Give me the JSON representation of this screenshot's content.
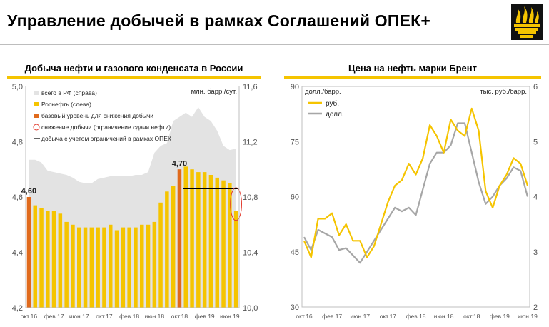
{
  "page": {
    "title": "Управление добычей в рамках Соглашений ОПЕК+"
  },
  "colors": {
    "yellow": "#f5c400",
    "orange": "#e06a1c",
    "gray_area": "#e3e3e3",
    "gray_line": "#a6a6a6",
    "black": "#000000"
  },
  "chart_data": [
    {
      "type": "bar",
      "title": "Добыча нефти и газового конденсата в России",
      "ylabel_right_unit": "млн. барр./сут.",
      "left_axis": {
        "ylim": [
          4.2,
          5.0
        ],
        "ticks": [
          "4,2",
          "4,4",
          "4,6",
          "4,8",
          "5,0"
        ],
        "tick_values": [
          4.2,
          4.4,
          4.6,
          4.8,
          5.0
        ]
      },
      "right_axis": {
        "ylim": [
          10.0,
          11.6
        ],
        "ticks": [
          "10,0",
          "10,4",
          "10,8",
          "11,2",
          "11,6"
        ],
        "tick_values": [
          10.0,
          10.4,
          10.8,
          11.2,
          11.6
        ]
      },
      "x_tick_labels": [
        "окт.16",
        "фев.17",
        "июн.17",
        "окт.17",
        "фев.18",
        "июн.18",
        "окт.18",
        "фев.19",
        "июн.19"
      ],
      "x_tick_indices": [
        0,
        4,
        8,
        12,
        16,
        20,
        24,
        28,
        32
      ],
      "legend": [
        "всего в РФ (справа)",
        "Роснефть (слева)",
        "базовый уровень для снижения добычи",
        "снижение добычи (ограничение сдачи нефти)",
        "добыча с учетом ограничений в рамках ОПЕК+"
      ],
      "rosneft_series": {
        "name": "Роснефть (слева)",
        "values": [
          4.6,
          4.57,
          4.56,
          4.55,
          4.55,
          4.54,
          4.51,
          4.5,
          4.49,
          4.49,
          4.49,
          4.49,
          4.49,
          4.5,
          4.48,
          4.49,
          4.49,
          4.49,
          4.5,
          4.5,
          4.51,
          4.58,
          4.62,
          4.64,
          4.7,
          4.71,
          4.7,
          4.69,
          4.69,
          4.68,
          4.67,
          4.66,
          4.65,
          4.55
        ],
        "baseline_indices": [
          0,
          24
        ],
        "cut_index": 33
      },
      "russia_total_series": {
        "name": "всего в РФ (справа)",
        "values": [
          11.07,
          11.07,
          11.05,
          10.99,
          10.98,
          10.97,
          10.96,
          10.94,
          10.91,
          10.9,
          10.9,
          10.93,
          10.94,
          10.95,
          10.95,
          10.95,
          10.95,
          10.96,
          10.96,
          10.98,
          11.12,
          11.17,
          11.19,
          11.35,
          11.38,
          11.41,
          11.38,
          11.45,
          11.38,
          11.35,
          11.28,
          11.17,
          11.14,
          11.15
        ]
      },
      "opec_line": {
        "name": "добыча с учетом ограничений в рамках ОПЕК+",
        "value": 4.63,
        "from_index": 25,
        "to_index": 33
      },
      "annotations": [
        {
          "text": "4,60",
          "index": 0
        },
        {
          "text": "4,70",
          "index": 24
        }
      ]
    },
    {
      "type": "line",
      "title": "Цена на нефть марки Брент",
      "left_axis": {
        "unit": "долл./барр.",
        "ylim": [
          30,
          90
        ],
        "ticks": [
          "30",
          "45",
          "60",
          "75",
          "90"
        ],
        "tick_values": [
          30,
          45,
          60,
          75,
          90
        ]
      },
      "right_axis": {
        "unit": "тыс. руб./барр.",
        "ylim": [
          2,
          6
        ],
        "ticks": [
          "2",
          "3",
          "4",
          "5",
          "6"
        ],
        "tick_values": [
          2,
          3,
          4,
          5,
          6
        ]
      },
      "x_tick_labels": [
        "окт.16",
        "фев.17",
        "июн.17",
        "окт.17",
        "фев.18",
        "июн.18",
        "окт.18",
        "фев.19",
        "июн.19"
      ],
      "x_tick_indices": [
        0,
        4,
        8,
        12,
        16,
        20,
        24,
        28,
        32
      ],
      "series": [
        {
          "name": "руб.",
          "axis": "right",
          "values": [
            3.2,
            2.9,
            3.6,
            3.6,
            3.7,
            3.3,
            3.5,
            3.2,
            3.2,
            2.9,
            3.1,
            3.5,
            3.9,
            4.2,
            4.3,
            4.6,
            4.4,
            4.7,
            5.3,
            5.1,
            4.8,
            5.4,
            5.2,
            5.1,
            5.6,
            5.2,
            4.1,
            3.8,
            4.2,
            4.4,
            4.7,
            4.6,
            4.2
          ]
        },
        {
          "name": "долл.",
          "axis": "left",
          "values": [
            49.0,
            45.5,
            51.0,
            50.0,
            49.0,
            45.5,
            46.0,
            44.0,
            42.0,
            45.0,
            48.0,
            51.0,
            54.0,
            57.0,
            56.0,
            57.0,
            55.0,
            62.0,
            69.0,
            72.0,
            72.0,
            74.0,
            80.0,
            80.0,
            72.0,
            64.0,
            58.0,
            60.0,
            63.0,
            65.0,
            68.0,
            67.0,
            60.0
          ]
        }
      ],
      "legend": [
        "руб.",
        "долл."
      ]
    }
  ]
}
